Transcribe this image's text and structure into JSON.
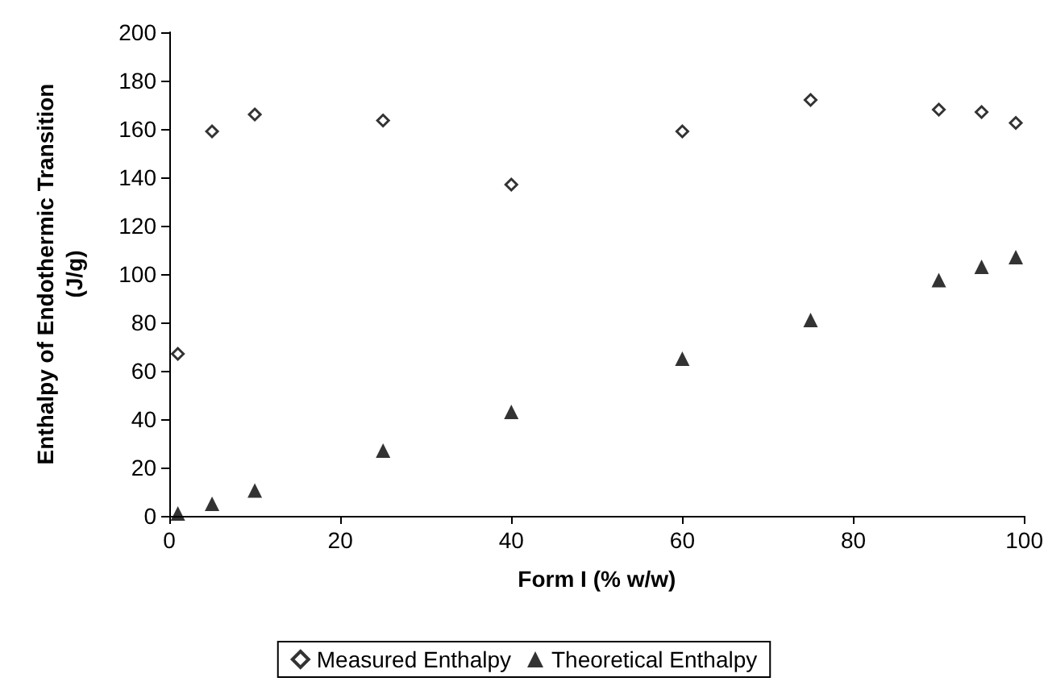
{
  "chart_data": {
    "type": "scatter",
    "xlabel": "Form I (% w/w)",
    "ylabel": "Enthalpy of Endothermic Transition\n(J/g)",
    "x": [
      1,
      5,
      10,
      25,
      40,
      60,
      75,
      90,
      95,
      99
    ],
    "series": [
      {
        "name": "Measured Enthalpy",
        "color": "#000000",
        "marker": "diamond",
        "values": [
          67,
          159,
          166,
          163.5,
          137,
          159,
          172,
          168,
          167,
          162.5
        ]
      },
      {
        "name": "Theoretical Enthalpy",
        "color": "#000000",
        "marker": "triangle",
        "values": [
          1,
          5,
          10.5,
          27,
          43,
          65,
          81,
          97.5,
          103,
          107
        ]
      }
    ],
    "xlim": [
      0,
      100
    ],
    "xticks": [
      0,
      20,
      40,
      60,
      80,
      100
    ],
    "ylim": [
      0,
      200
    ],
    "yticks": [
      0,
      20,
      40,
      60,
      80,
      100,
      120,
      140,
      160,
      180,
      200
    ],
    "grid": false,
    "legend": "bottom"
  }
}
